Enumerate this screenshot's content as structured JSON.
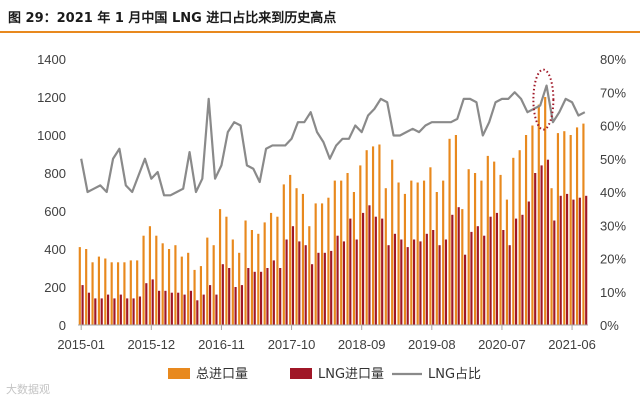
{
  "figure": {
    "title": "图 29：2021 年 1 月中国 LNG 进口占比来到历史高点",
    "watermark": "大数据观"
  },
  "colors": {
    "total": "#e8891e",
    "lng": "#a01727",
    "ratio": "#8a8a8a",
    "highlight": "#a01727",
    "title_rule": "#e8891e"
  },
  "chart_data": {
    "type": "bar+line",
    "title": "",
    "x_tick_labels": [
      "2015-01",
      "2015-12",
      "2016-11",
      "2017-10",
      "2018-09",
      "2019-08",
      "2020-07",
      "2021-06"
    ],
    "y_left": {
      "ticks": [
        "0",
        "200",
        "400",
        "600",
        "800",
        "1000",
        "1200",
        "1400"
      ],
      "lim": [
        0,
        1400
      ]
    },
    "y_right": {
      "ticks": [
        "0%",
        "10%",
        "20%",
        "30%",
        "40%",
        "50%",
        "60%",
        "70%",
        "80%"
      ],
      "lim": [
        0,
        0.8
      ]
    },
    "grid": false,
    "legend_position": "bottom",
    "legend": [
      "总进口量",
      "LNG进口量",
      "LNG占比"
    ],
    "annotation": "dotted ellipse highlighting the 2021-01 LNG share peak",
    "categories": [
      "2015-01",
      "2015-02",
      "2015-03",
      "2015-04",
      "2015-05",
      "2015-06",
      "2015-07",
      "2015-08",
      "2015-09",
      "2015-10",
      "2015-11",
      "2015-12",
      "2016-01",
      "2016-02",
      "2016-03",
      "2016-04",
      "2016-05",
      "2016-06",
      "2016-07",
      "2016-08",
      "2016-09",
      "2016-10",
      "2016-11",
      "2016-12",
      "2017-01",
      "2017-02",
      "2017-03",
      "2017-04",
      "2017-05",
      "2017-06",
      "2017-07",
      "2017-08",
      "2017-09",
      "2017-10",
      "2017-11",
      "2017-12",
      "2018-01",
      "2018-02",
      "2018-03",
      "2018-04",
      "2018-05",
      "2018-06",
      "2018-07",
      "2018-08",
      "2018-09",
      "2018-10",
      "2018-11",
      "2018-12",
      "2019-01",
      "2019-02",
      "2019-03",
      "2019-04",
      "2019-05",
      "2019-06",
      "2019-07",
      "2019-08",
      "2019-09",
      "2019-10",
      "2019-11",
      "2019-12",
      "2020-01",
      "2020-02",
      "2020-03",
      "2020-04",
      "2020-05",
      "2020-06",
      "2020-07",
      "2020-08",
      "2020-09",
      "2020-10",
      "2020-11",
      "2020-12",
      "2021-01",
      "2021-02",
      "2021-03",
      "2021-04",
      "2021-05",
      "2021-06",
      "2021-07",
      "2021-08"
    ],
    "series": [
      {
        "name": "总进口量",
        "type": "bar",
        "axis": "left",
        "values": [
          410,
          400,
          330,
          360,
          350,
          330,
          330,
          330,
          340,
          340,
          470,
          520,
          470,
          430,
          400,
          420,
          360,
          380,
          290,
          310,
          460,
          420,
          610,
          570,
          450,
          380,
          550,
          500,
          480,
          540,
          590,
          570,
          740,
          790,
          720,
          690,
          520,
          640,
          640,
          670,
          760,
          760,
          800,
          700,
          840,
          920,
          940,
          950,
          720,
          870,
          750,
          690,
          760,
          750,
          760,
          830,
          700,
          760,
          980,
          1000,
          610,
          820,
          800,
          760,
          890,
          860,
          790,
          660,
          880,
          920,
          1000,
          1050,
          1160,
          1200,
          720,
          1010,
          1020,
          1000,
          1040,
          1060
        ]
      },
      {
        "name": "LNG进口量",
        "type": "bar",
        "axis": "left",
        "values": [
          210,
          170,
          140,
          140,
          160,
          140,
          160,
          140,
          140,
          150,
          220,
          240,
          180,
          180,
          170,
          170,
          160,
          180,
          130,
          160,
          210,
          160,
          320,
          300,
          200,
          210,
          300,
          280,
          280,
          300,
          340,
          300,
          450,
          520,
          440,
          420,
          320,
          380,
          380,
          390,
          470,
          440,
          560,
          450,
          590,
          630,
          570,
          560,
          420,
          480,
          450,
          410,
          450,
          440,
          480,
          500,
          420,
          450,
          580,
          620,
          370,
          490,
          520,
          470,
          570,
          590,
          500,
          420,
          560,
          580,
          650,
          800,
          840,
          870,
          550,
          680,
          690,
          660,
          670,
          680
        ]
      },
      {
        "name": "LNG占比",
        "type": "line",
        "axis": "right",
        "values": [
          0.5,
          0.4,
          0.41,
          0.42,
          0.4,
          0.5,
          0.53,
          0.42,
          0.4,
          0.45,
          0.5,
          0.44,
          0.46,
          0.39,
          0.39,
          0.4,
          0.41,
          0.52,
          0.4,
          0.44,
          0.68,
          0.44,
          0.48,
          0.58,
          0.61,
          0.6,
          0.48,
          0.47,
          0.43,
          0.53,
          0.54,
          0.54,
          0.54,
          0.56,
          0.61,
          0.61,
          0.64,
          0.58,
          0.55,
          0.5,
          0.54,
          0.56,
          0.56,
          0.6,
          0.58,
          0.63,
          0.65,
          0.68,
          0.67,
          0.57,
          0.57,
          0.58,
          0.59,
          0.58,
          0.6,
          0.61,
          0.61,
          0.61,
          0.61,
          0.62,
          0.68,
          0.68,
          0.67,
          0.57,
          0.61,
          0.67,
          0.68,
          0.68,
          0.7,
          0.68,
          0.64,
          0.65,
          0.66,
          0.72,
          0.61,
          0.64,
          0.68,
          0.67,
          0.63,
          0.64
        ]
      }
    ]
  }
}
